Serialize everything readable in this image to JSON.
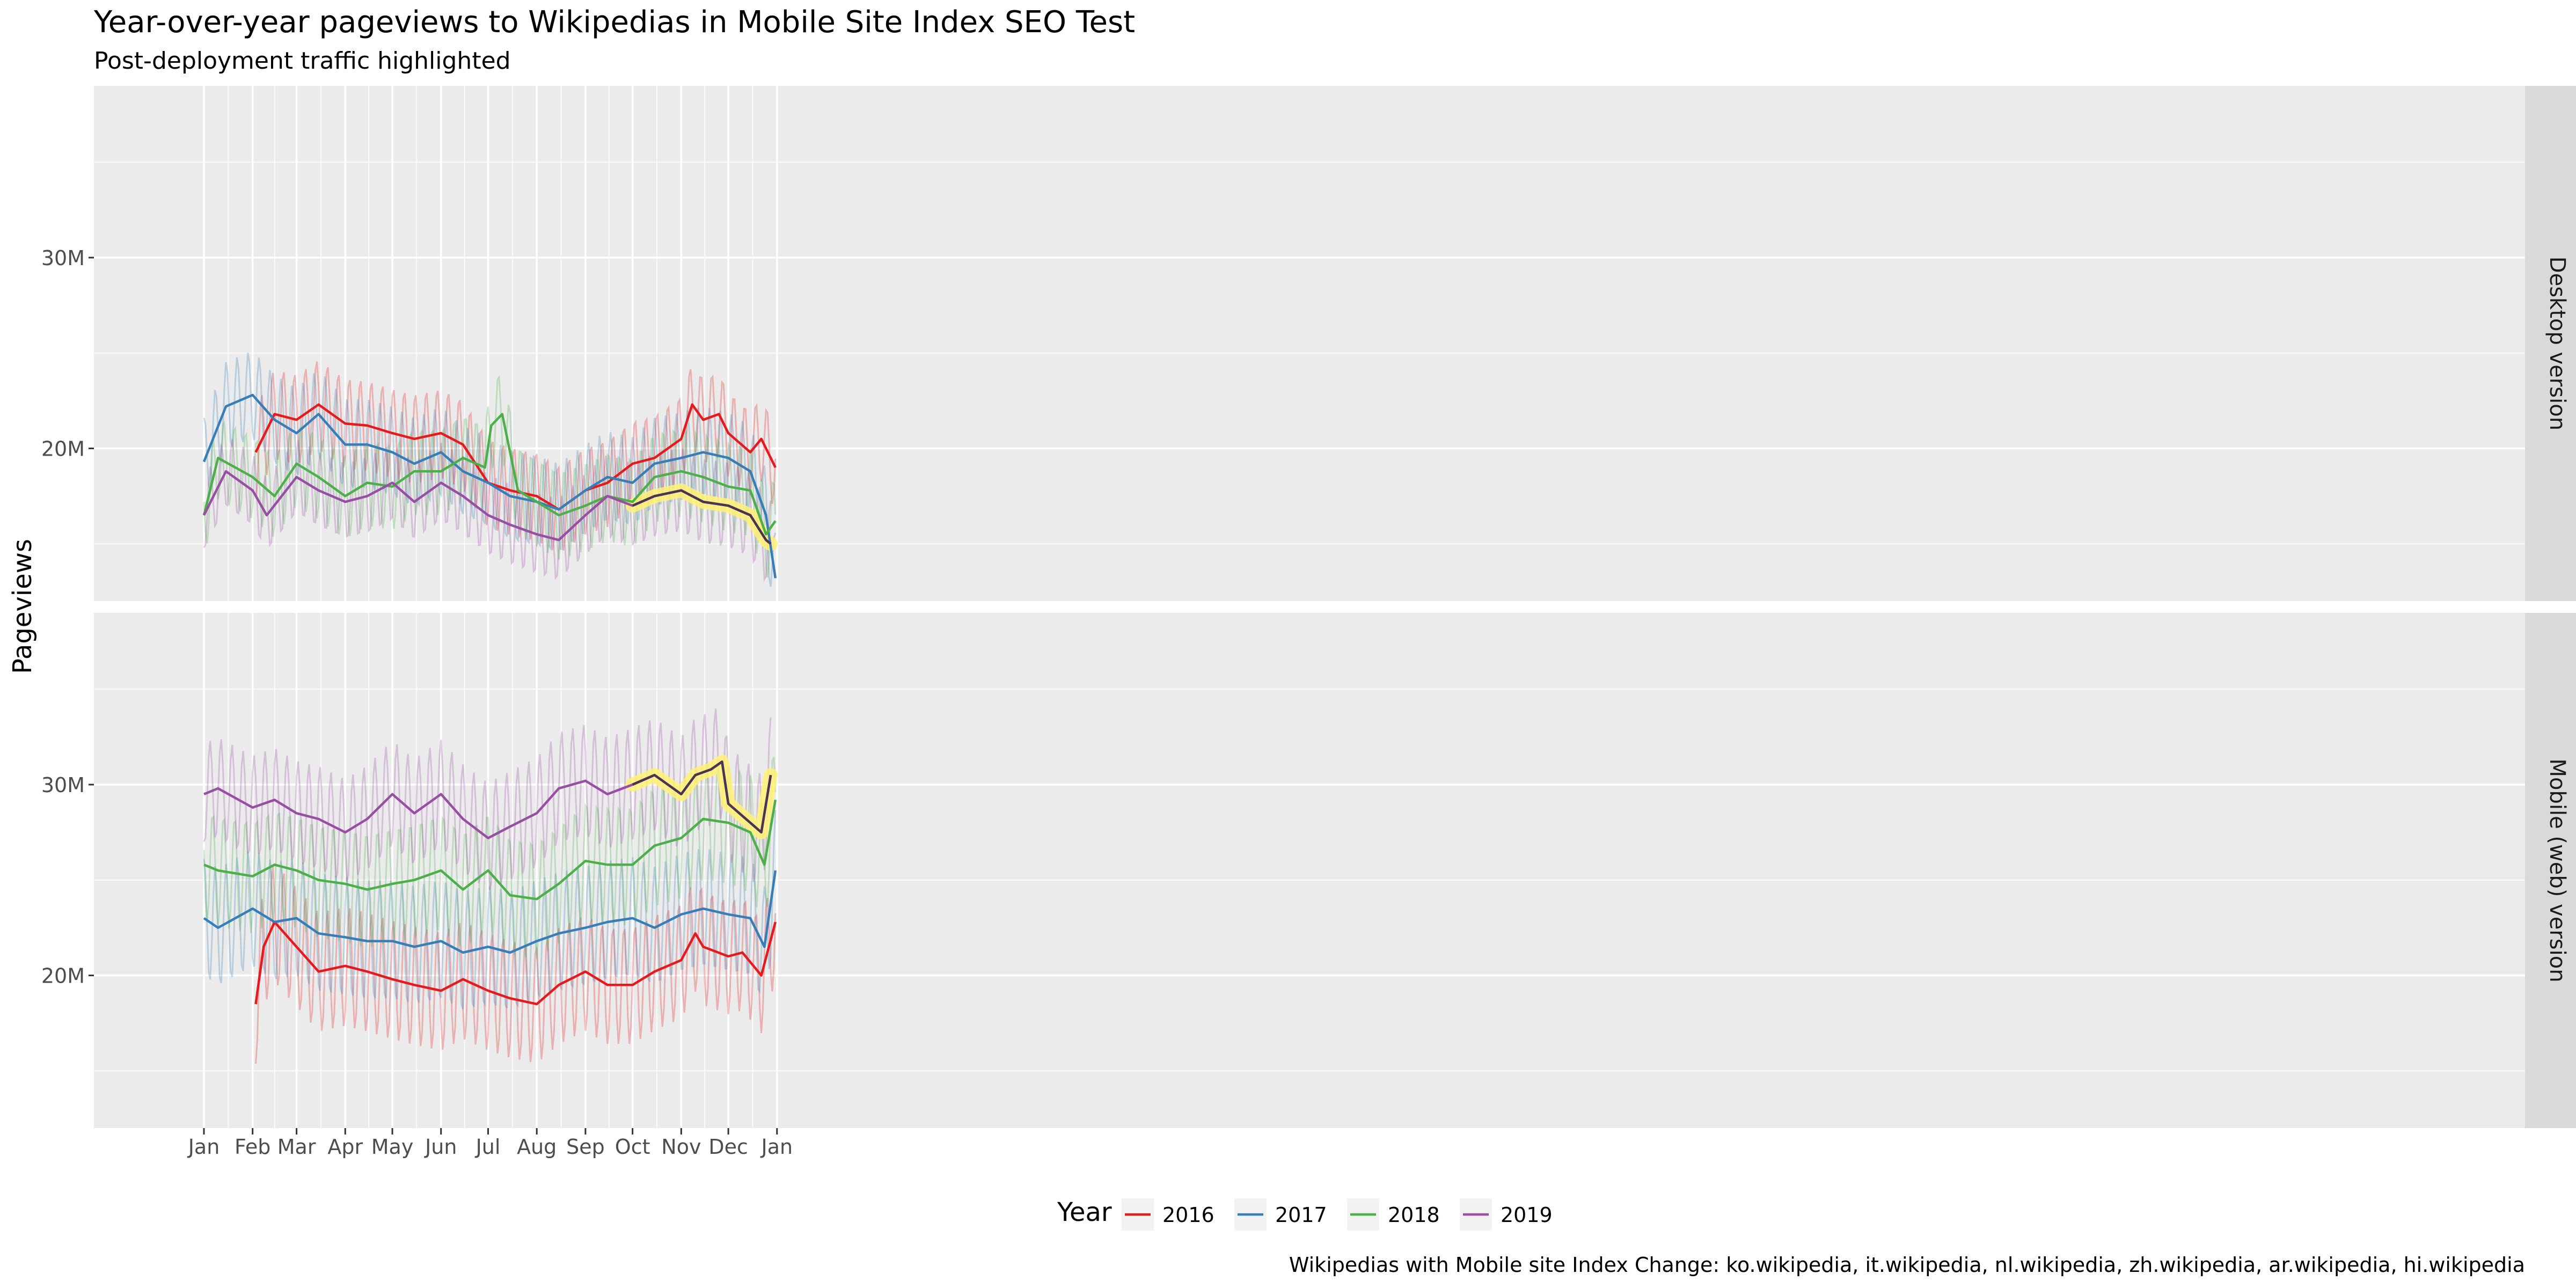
{
  "chart_data": {
    "type": "line",
    "title": "Year-over-year pageviews to Wikipedias in Mobile Site Index SEO Test",
    "subtitle": "Post-deployment traffic highlighted",
    "ylabel": "Pageviews",
    "caption": "Wikipedias with Mobile site Index Change: ko.wikipedia, it.wikipedia, nl.wikipedia, zh.wikipedia, ar.wikipedia, hi.wikipedia",
    "legend_title": "Year",
    "legend_position": "bottom",
    "grid": true,
    "x_ticks": [
      "Jan",
      "Feb",
      "Mar",
      "Apr",
      "May",
      "Jun",
      "Jul",
      "Aug",
      "Sep",
      "Oct",
      "Nov",
      "Dec",
      "Jan"
    ],
    "y_ticks": [
      "20M",
      "30M"
    ],
    "ylim": [
      12,
      39
    ],
    "highlight": {
      "year": "2019",
      "start": "Oct 1",
      "end": "Dec 28",
      "color": "#FFF176"
    },
    "series_colors": {
      "2016": "#E41A1C",
      "2017": "#377EB8",
      "2018": "#4DAF4A",
      "2019": "#984EA3"
    },
    "facets": [
      {
        "label": "Desktop version",
        "series": [
          {
            "name": "2016",
            "x": [
              "Feb 3",
              "Feb 15",
              "Mar 1",
              "Mar 15",
              "Apr 1",
              "Apr 15",
              "May 1",
              "May 15",
              "Jun 1",
              "Jun 15",
              "Jul 1",
              "Jul 15",
              "Aug 1",
              "Aug 15",
              "Sep 1",
              "Sep 15",
              "Oct 1",
              "Oct 15",
              "Nov 1",
              "Nov 8",
              "Nov 15",
              "Nov 25",
              "Dec 1",
              "Dec 15",
              "Dec 22",
              "Dec 31"
            ],
            "y": [
              19.8,
              21.8,
              21.5,
              22.3,
              21.3,
              21.2,
              20.8,
              20.5,
              20.8,
              20.2,
              18.2,
              17.8,
              17.5,
              16.8,
              17.8,
              18.2,
              19.2,
              19.5,
              20.5,
              22.3,
              21.5,
              21.8,
              20.8,
              19.8,
              20.5,
              19.0
            ]
          },
          {
            "name": "2017",
            "x": [
              "Jan 1",
              "Jan 15",
              "Feb 1",
              "Feb 15",
              "Mar 1",
              "Mar 15",
              "Apr 1",
              "Apr 15",
              "May 1",
              "May 15",
              "Jun 1",
              "Jun 15",
              "Jul 1",
              "Jul 15",
              "Aug 1",
              "Aug 15",
              "Sep 1",
              "Sep 15",
              "Oct 1",
              "Oct 15",
              "Nov 1",
              "Nov 15",
              "Dec 1",
              "Dec 15",
              "Dec 25",
              "Dec 31"
            ],
            "y": [
              19.3,
              22.2,
              22.8,
              21.5,
              20.8,
              21.8,
              20.2,
              20.2,
              19.8,
              19.2,
              19.8,
              18.8,
              18.2,
              17.5,
              17.2,
              16.8,
              17.8,
              18.5,
              18.2,
              19.2,
              19.5,
              19.8,
              19.5,
              18.8,
              16.5,
              13.2
            ]
          },
          {
            "name": "2018",
            "x": [
              "Jan 1",
              "Jan 10",
              "Feb 1",
              "Feb 15",
              "Mar 1",
              "Mar 15",
              "Apr 1",
              "Apr 15",
              "May 1",
              "May 15",
              "Jun 1",
              "Jun 15",
              "Jun 29",
              "Jul 3",
              "Jul 10",
              "Jul 20",
              "Aug 1",
              "Aug 15",
              "Sep 1",
              "Sep 15",
              "Oct 1",
              "Oct 15",
              "Nov 1",
              "Nov 15",
              "Dec 1",
              "Dec 15",
              "Dec 25",
              "Dec 31"
            ],
            "y": [
              16.5,
              19.5,
              18.5,
              17.5,
              19.2,
              18.5,
              17.5,
              18.2,
              18.0,
              18.8,
              18.8,
              19.5,
              19.0,
              21.2,
              21.8,
              17.8,
              17.2,
              16.5,
              17.0,
              17.5,
              17.2,
              18.5,
              18.8,
              18.5,
              18.0,
              17.8,
              15.5,
              16.2
            ]
          },
          {
            "name": "2019",
            "x": [
              "Jan 1",
              "Jan 15",
              "Feb 1",
              "Feb 10",
              "Mar 1",
              "Mar 15",
              "Apr 1",
              "Apr 15",
              "May 1",
              "May 15",
              "Jun 1",
              "Jun 15",
              "Jul 1",
              "Jul 15",
              "Aug 1",
              "Aug 15",
              "Sep 1",
              "Sep 15",
              "Oct 1",
              "Oct 15",
              "Nov 1",
              "Nov 15",
              "Dec 1",
              "Dec 15",
              "Dec 25",
              "Dec 28"
            ],
            "y": [
              16.5,
              18.8,
              17.8,
              16.5,
              18.5,
              17.8,
              17.2,
              17.5,
              18.2,
              17.2,
              18.2,
              17.5,
              16.5,
              16.0,
              15.5,
              15.2,
              16.5,
              17.5,
              17.0,
              17.5,
              17.8,
              17.2,
              17.0,
              16.5,
              15.2,
              15.0
            ]
          }
        ]
      },
      {
        "label": "Mobile (web) version",
        "series": [
          {
            "name": "2016",
            "x": [
              "Feb 3",
              "Feb 8",
              "Feb 15",
              "Mar 1",
              "Mar 15",
              "Apr 1",
              "Apr 15",
              "May 1",
              "May 15",
              "Jun 1",
              "Jun 15",
              "Jul 1",
              "Jul 15",
              "Aug 1",
              "Aug 15",
              "Sep 1",
              "Sep 15",
              "Oct 1",
              "Oct 15",
              "Nov 1",
              "Nov 10",
              "Nov 15",
              "Dec 1",
              "Dec 10",
              "Dec 22",
              "Dec 31"
            ],
            "y": [
              18.5,
              21.5,
              22.8,
              21.5,
              20.2,
              20.5,
              20.2,
              19.8,
              19.5,
              19.2,
              19.8,
              19.2,
              18.8,
              18.5,
              19.5,
              20.2,
              19.5,
              19.5,
              20.2,
              20.8,
              22.2,
              21.5,
              21.0,
              21.2,
              20.0,
              22.8
            ]
          },
          {
            "name": "2017",
            "x": [
              "Jan 1",
              "Jan 10",
              "Feb 1",
              "Feb 15",
              "Mar 1",
              "Mar 15",
              "Apr 1",
              "Apr 15",
              "May 1",
              "May 15",
              "Jun 1",
              "Jun 15",
              "Jul 1",
              "Jul 15",
              "Aug 1",
              "Aug 15",
              "Sep 1",
              "Sep 15",
              "Oct 1",
              "Oct 15",
              "Nov 1",
              "Nov 15",
              "Dec 1",
              "Dec 15",
              "Dec 24",
              "Dec 31"
            ],
            "y": [
              23.0,
              22.5,
              23.5,
              22.8,
              23.0,
              22.2,
              22.0,
              21.8,
              21.8,
              21.5,
              21.8,
              21.2,
              21.5,
              21.2,
              21.8,
              22.2,
              22.5,
              22.8,
              23.0,
              22.5,
              23.2,
              23.5,
              23.2,
              23.0,
              21.5,
              25.5
            ]
          },
          {
            "name": "2018",
            "x": [
              "Jan 1",
              "Jan 10",
              "Feb 1",
              "Feb 15",
              "Mar 1",
              "Mar 15",
              "Apr 1",
              "Apr 15",
              "May 1",
              "May 15",
              "Jun 1",
              "Jun 15",
              "Jul 1",
              "Jul 15",
              "Aug 1",
              "Aug 15",
              "Sep 1",
              "Sep 15",
              "Oct 1",
              "Oct 15",
              "Nov 1",
              "Nov 15",
              "Dec 1",
              "Dec 15",
              "Dec 24",
              "Dec 31"
            ],
            "y": [
              25.8,
              25.5,
              25.2,
              25.8,
              25.5,
              25.0,
              24.8,
              24.5,
              24.8,
              25.0,
              25.5,
              24.5,
              25.5,
              24.2,
              24.0,
              24.8,
              26.0,
              25.8,
              25.8,
              26.8,
              27.2,
              28.2,
              28.0,
              27.5,
              25.8,
              29.2
            ]
          },
          {
            "name": "2019",
            "x": [
              "Jan 1",
              "Jan 10",
              "Feb 1",
              "Feb 15",
              "Mar 1",
              "Mar 15",
              "Apr 1",
              "Apr 15",
              "May 1",
              "May 15",
              "Jun 1",
              "Jun 15",
              "Jul 1",
              "Jul 15",
              "Aug 1",
              "Aug 15",
              "Sep 1",
              "Sep 15",
              "Oct 1",
              "Oct 15",
              "Nov 1",
              "Nov 10",
              "Nov 20",
              "Nov 27",
              "Dec 1",
              "Dec 15",
              "Dec 22",
              "Dec 28"
            ],
            "y": [
              29.5,
              29.8,
              28.8,
              29.2,
              28.5,
              28.2,
              27.5,
              28.2,
              29.5,
              28.5,
              29.5,
              28.2,
              27.2,
              27.8,
              28.5,
              29.8,
              30.2,
              29.5,
              30.0,
              30.5,
              29.5,
              30.5,
              30.8,
              31.2,
              29.0,
              28.0,
              27.5,
              30.5
            ]
          }
        ]
      }
    ]
  }
}
